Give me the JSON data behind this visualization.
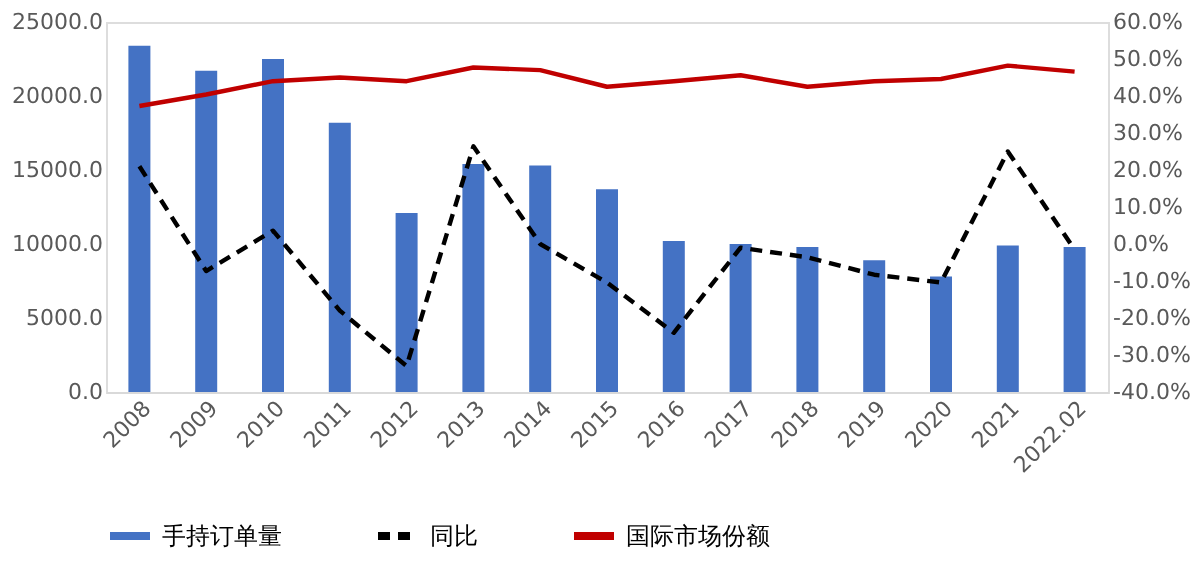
{
  "chart_data": {
    "type": "bar",
    "categories": [
      "2008",
      "2009",
      "2010",
      "2011",
      "2012",
      "2013",
      "2014",
      "2015",
      "2016",
      "2017",
      "2018",
      "2019",
      "2020",
      "2021",
      "2022.02"
    ],
    "series": [
      {
        "name": "手持订单量",
        "color": "#4472c4",
        "values": [
          23400,
          21700,
          22500,
          18200,
          12100,
          15400,
          15300,
          13700,
          10200,
          10000,
          9800,
          8900,
          7800,
          9900,
          9800
        ]
      },
      {
        "name": "同比",
        "type": "line",
        "axis": "y2",
        "color": "#000000",
        "line_style": "dashed",
        "values": [
          21,
          -7.3,
          3.6,
          -18,
          -33,
          26.4,
          0,
          -10.4,
          -24,
          -1,
          -3.6,
          -8.3,
          -10.4,
          25,
          -1.5
        ]
      },
      {
        "name": "国际市场份额",
        "type": "line",
        "axis": "y2",
        "color": "#c00000",
        "line_style": "solid",
        "values": [
          37.3,
          40.4,
          44,
          45,
          44,
          47.7,
          47,
          42.5,
          44,
          45.6,
          42.5,
          44,
          44.6,
          48.2,
          46.6
        ]
      }
    ],
    "ylim": [
      0,
      25000
    ],
    "yticks": [
      {
        "value": 0,
        "label": "0.0"
      },
      {
        "value": 5000,
        "label": "5000.0"
      },
      {
        "value": 10000,
        "label": "10000.0"
      },
      {
        "value": 15000,
        "label": "15000.0"
      },
      {
        "value": 20000,
        "label": "20000.0"
      },
      {
        "value": 25000,
        "label": "25000.0"
      }
    ],
    "y2lim": [
      -40,
      60
    ],
    "y2ticks": [
      {
        "value": -40,
        "label": "-40.0%"
      },
      {
        "value": -30,
        "label": "-30.0%"
      },
      {
        "value": -20,
        "label": "-20.0%"
      },
      {
        "value": -10,
        "label": "-10.0%"
      },
      {
        "value": 0,
        "label": "0.0%"
      },
      {
        "value": 10,
        "label": "10.0%"
      },
      {
        "value": 20,
        "label": "20.0%"
      },
      {
        "value": 30,
        "label": "30.0%"
      },
      {
        "value": 40,
        "label": "40.0%"
      },
      {
        "value": 50,
        "label": "50.0%"
      },
      {
        "value": 60,
        "label": "60.0%"
      }
    ],
    "grid": false,
    "legend": "bottom"
  }
}
